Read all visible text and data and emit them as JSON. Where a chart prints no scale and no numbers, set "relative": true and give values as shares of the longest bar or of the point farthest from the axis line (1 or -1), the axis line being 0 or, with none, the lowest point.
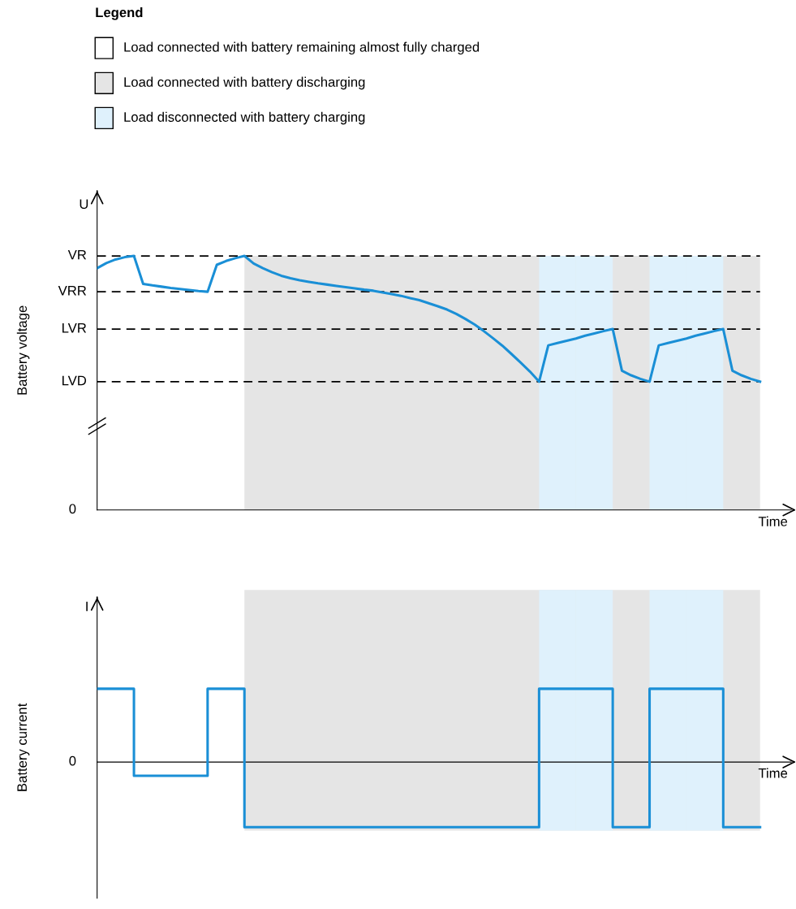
{
  "chart_data": [
    {
      "type": "line",
      "relative": true,
      "ylabel": "Battery voltage",
      "legend_title": "Legend",
      "line_style": "solid",
      "marker": "none",
      "annotations": [
        "U",
        "Time",
        "0",
        "Load connected with battery remaining almost fully charged",
        "Load connected with battery discharging",
        "Load disconnected with battery charging"
      ],
      "categories": [
        null,
        null,
        null,
        null,
        null,
        null,
        null,
        null,
        null,
        null,
        null,
        null,
        null,
        null,
        null,
        null,
        null,
        null,
        null,
        null,
        null,
        null,
        null,
        null,
        null,
        null,
        null,
        null,
        null,
        null,
        null,
        null,
        null,
        null,
        null,
        null,
        null,
        null,
        null,
        null,
        null,
        null,
        null,
        null,
        null,
        null,
        null,
        null,
        null,
        null,
        null,
        null,
        null,
        null,
        null,
        null,
        null,
        null,
        null,
        null,
        null,
        null,
        null,
        null,
        null,
        null,
        null,
        null,
        null,
        null,
        null,
        null,
        null
      ],
      "series": [
        {
          "color": "#1a8fd6",
          "values": [
            0.952,
            0.972,
            0.986,
            0.995,
            1.0,
            0.89,
            0.884,
            0.879,
            0.874,
            0.87,
            0.866,
            0.862,
            0.859,
            0.965,
            0.98,
            0.991,
            1.0,
            0.97,
            0.952,
            0.936,
            0.922,
            0.912,
            0.904,
            0.898,
            0.892,
            0.887,
            0.882,
            0.877,
            0.872,
            0.867,
            0.863,
            0.856,
            0.85,
            0.843,
            0.834,
            0.826,
            0.814,
            0.802,
            0.789,
            0.772,
            0.752,
            0.73,
            0.704,
            0.676,
            0.647,
            0.614,
            0.58,
            0.545,
            0.505,
            0.648,
            0.657,
            0.666,
            0.675,
            0.686,
            0.695,
            0.704,
            0.712,
            0.548,
            0.53,
            0.516,
            0.505,
            0.648,
            0.657,
            0.666,
            0.675,
            0.686,
            0.695,
            0.704,
            0.712,
            0.548,
            0.53,
            0.516,
            0.505
          ]
        }
      ],
      "ref_lines": [
        {
          "axis": "y",
          "value": 1.0,
          "label": "VR",
          "line_style": "dashed",
          "color": "#000000"
        },
        {
          "axis": "y",
          "value": 0.859,
          "label": "VRR",
          "line_style": "dashed",
          "color": "#000000"
        },
        {
          "axis": "y",
          "value": 0.712,
          "label": "LVR",
          "line_style": "dashed",
          "color": "#000000"
        },
        {
          "axis": "y",
          "value": 0.505,
          "label": "LVD",
          "line_style": "dashed",
          "color": "#000000"
        }
      ]
    },
    {
      "type": "step",
      "relative": true,
      "ylabel": "Battery current",
      "line_style": "solid",
      "marker": "none",
      "annotations": [
        "I",
        "Time",
        "0"
      ],
      "categories": [
        null,
        null,
        null,
        null,
        null,
        null,
        null,
        null,
        null,
        null,
        null,
        null,
        null,
        null,
        null,
        null,
        null,
        null,
        null
      ],
      "series": [
        {
          "color": "#1a8fd6",
          "values": [
            1,
            -0.187,
            -0.187,
            1,
            -0.89,
            -0.89,
            -0.89,
            -0.89,
            -0.89,
            -0.89,
            -0.89,
            -0.89,
            1,
            1,
            -0.89,
            1,
            1,
            -0.89,
            -0.89
          ]
        }
      ]
    }
  ]
}
